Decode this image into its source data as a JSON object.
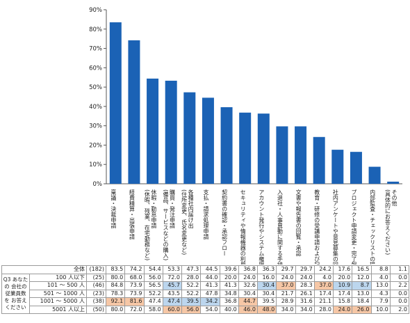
{
  "chart_data": {
    "type": "bar",
    "categories": [
      "稟議・決裁申請",
      "経費精算・出張申請",
      "休暇・勤怠申請 (休暇、残業、在宅勤務など)",
      "購買・発注申請 (備品、サービスなどの購入)",
      "各種社内届け出 (住所変更、氏名変更など)",
      "支払・請求処理申請",
      "契約書の確認・承認フロー",
      "セキュリティや情報機器の利用申請",
      "アカウント発行やシステム権限の申請",
      "入退社・人事異動に関する手続き",
      "文書や報告書の回覧・承認",
      "教育・研修の受講申請および記録管理",
      "社内アンケートや意見募集の回収・管理",
      "プロジェクト申請変更・完了報告",
      "内部監査・チェックリストの提出",
      "その他 (具体的にお答えください)"
    ],
    "values": [
      83.5,
      74.2,
      54.4,
      53.3,
      47.3,
      44.5,
      39.6,
      36.8,
      36.3,
      29.7,
      29.7,
      24.2,
      17.6,
      16.5,
      8.8,
      1.1
    ],
    "yticks": [
      "0%",
      "10%",
      "20%",
      "30%",
      "40%",
      "50%",
      "60%",
      "70%",
      "80%",
      "90%"
    ],
    "ylim": [
      0,
      90
    ],
    "bar_color": "#1b62b5",
    "table": {
      "overall": {
        "label": "全体",
        "n": "(182)",
        "values": [
          "83.5",
          "74.2",
          "54.4",
          "53.3",
          "47.3",
          "44.5",
          "39.6",
          "36.8",
          "36.3",
          "29.7",
          "29.7",
          "24.2",
          "17.6",
          "16.5",
          "8.8",
          "1.1"
        ]
      },
      "group_label": "Q3 あなたの 会社の 従業員数を お答えください",
      "rows": [
        {
          "label": "100 人以下",
          "n": "(25)",
          "values": [
            "80.0",
            "68.0",
            "56.0",
            "72.0",
            "28.0",
            "44.0",
            "20.0",
            "24.0",
            "16.0",
            "24.0",
            "24.0",
            "4.0",
            "20.0",
            "12.0",
            "4.0",
            "0.0"
          ],
          "hl": [
            "",
            "",
            "",
            "",
            "",
            "",
            "",
            "",
            "",
            "",
            "",
            "",
            "",
            "",
            "",
            ""
          ]
        },
        {
          "label": "101 ～ 500 人",
          "n": "(46)",
          "values": [
            "84.8",
            "73.9",
            "56.5",
            "45.7",
            "52.2",
            "41.3",
            "41.3",
            "32.6",
            "30.4",
            "37.0",
            "28.3",
            "37.0",
            "10.9",
            "8.7",
            "13.0",
            "2.2"
          ],
          "hl": [
            "",
            "",
            "",
            "b",
            "",
            "",
            "",
            "",
            "b",
            "o",
            "",
            "o",
            "b",
            "b",
            "",
            ""
          ]
        },
        {
          "label": "501 ～ 1000 人",
          "n": "(23)",
          "values": [
            "78.3",
            "73.9",
            "52.2",
            "43.5",
            "52.2",
            "47.8",
            "34.8",
            "30.4",
            "30.4",
            "21.7",
            "26.1",
            "17.4",
            "17.4",
            "13.0",
            "4.3",
            "0.0"
          ],
          "hl": [
            "",
            "",
            "",
            "",
            "",
            "",
            "",
            "",
            "",
            "",
            "",
            "",
            "",
            "",
            "",
            ""
          ]
        },
        {
          "label": "1001 ～ 5000 人",
          "n": "(38)",
          "values": [
            "92.1",
            "81.6",
            "47.4",
            "47.4",
            "39.5",
            "34.2",
            "36.8",
            "44.7",
            "39.5",
            "28.9",
            "31.6",
            "21.1",
            "15.8",
            "18.4",
            "7.9",
            "0.0"
          ],
          "hl": [
            "o",
            "o",
            "",
            "b",
            "b",
            "b",
            "",
            "o",
            "",
            "",
            "",
            "",
            "",
            "",
            "",
            ""
          ]
        },
        {
          "label": "5001 人以上",
          "n": "(50)",
          "values": [
            "80.0",
            "72.0",
            "58.0",
            "60.0",
            "56.0",
            "54.0",
            "40.0",
            "46.0",
            "48.0",
            "34.0",
            "34.0",
            "28.0",
            "24.0",
            "26.0",
            "10.0",
            "2.0"
          ],
          "hl": [
            "",
            "",
            "",
            "o",
            "o",
            "",
            "",
            "o",
            "o",
            "",
            "",
            "",
            "o",
            "o",
            "",
            ""
          ]
        }
      ]
    }
  }
}
